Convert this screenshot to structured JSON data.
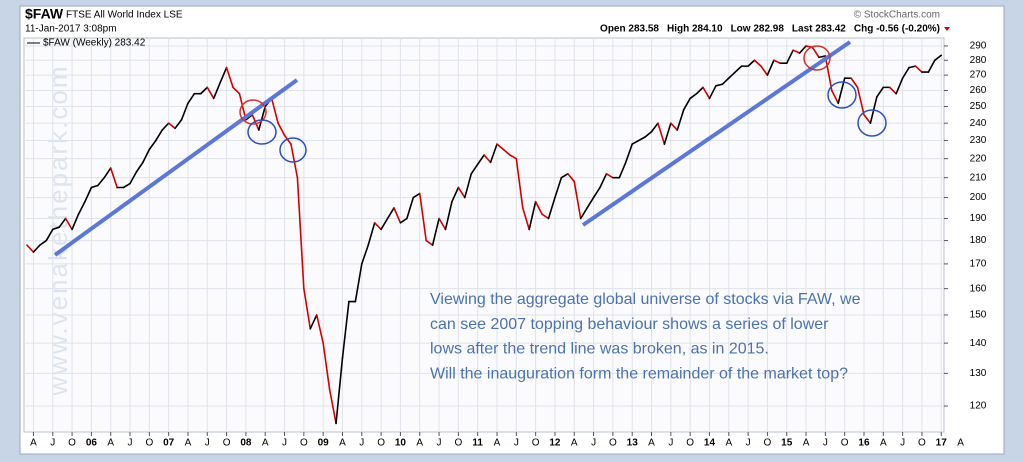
{
  "chart_data": {
    "type": "line",
    "symbol": "$FAW",
    "title": "FTSE All World Index LSE",
    "date": "11-Jan-2017 3:08pm",
    "source": "© StockCharts.com",
    "quote": [
      "Open 283.58",
      "High 284.10",
      "Low 282.98",
      "Last 283.42",
      "Chg -0.56 (-0.20%)"
    ],
    "watermark": "www.venakethepark.com",
    "annotation": [
      "Viewing the aggregate global universe of stocks via FAW, we",
      "can see 2007 topping behaviour shows a series of lower",
      "lows after the trend line was broken, as in 2015.",
      "Will the inauguration form the remainder of the market top?"
    ],
    "series": [
      {
        "name": "$FAW (Weekly) 283.42",
        "color": "#000000",
        "down_color": "#d40000",
        "values": [
          178,
          175,
          178,
          180,
          185,
          186,
          190,
          185,
          192,
          198,
          205,
          206,
          210,
          215,
          205,
          205,
          207,
          213,
          218,
          225,
          230,
          236,
          240,
          237,
          242,
          252,
          258,
          258,
          262,
          255,
          265,
          275,
          262,
          258,
          242,
          245,
          236,
          250,
          255,
          240,
          233,
          228,
          210,
          160,
          145,
          150,
          140,
          125,
          115,
          135,
          155,
          155,
          170,
          178,
          188,
          185,
          190,
          195,
          188,
          190,
          200,
          202,
          180,
          178,
          190,
          185,
          198,
          205,
          200,
          212,
          217,
          222,
          218,
          228,
          225,
          222,
          220,
          195,
          185,
          198,
          192,
          190,
          200,
          210,
          212,
          208,
          190,
          195,
          200,
          205,
          212,
          210,
          210,
          218,
          228,
          230,
          232,
          235,
          240,
          228,
          240,
          236,
          248,
          255,
          258,
          262,
          255,
          263,
          264,
          268,
          272,
          276,
          276,
          280,
          276,
          270,
          280,
          278,
          278,
          287,
          285,
          290,
          289,
          282,
          283,
          260,
          252,
          268,
          268,
          262,
          245,
          240,
          256,
          262,
          262,
          258,
          268,
          275,
          276,
          272,
          272,
          280,
          283.42
        ]
      }
    ],
    "log_scale": true,
    "grid": true,
    "xlim": [
      0,
      146
    ],
    "xticks": [
      {
        "value": 1,
        "label": "A"
      },
      {
        "value": 4,
        "label": "J"
      },
      {
        "value": 7,
        "label": "O"
      },
      {
        "value": 10,
        "label": "06"
      },
      {
        "value": 13,
        "label": "A"
      },
      {
        "value": 16,
        "label": "J"
      },
      {
        "value": 19,
        "label": "O"
      },
      {
        "value": 22,
        "label": "07"
      },
      {
        "value": 25,
        "label": "A"
      },
      {
        "value": 28,
        "label": "J"
      },
      {
        "value": 31,
        "label": "O"
      },
      {
        "value": 34,
        "label": "08"
      },
      {
        "value": 37,
        "label": "A"
      },
      {
        "value": 40,
        "label": "J"
      },
      {
        "value": 43,
        "label": "O"
      },
      {
        "value": 46,
        "label": "09"
      },
      {
        "value": 49,
        "label": "A"
      },
      {
        "value": 52,
        "label": "J"
      },
      {
        "value": 55,
        "label": "O"
      },
      {
        "value": 58,
        "label": "10"
      },
      {
        "value": 61,
        "label": "A"
      },
      {
        "value": 64,
        "label": "J"
      },
      {
        "value": 67,
        "label": "O"
      },
      {
        "value": 70,
        "label": "11"
      },
      {
        "value": 73,
        "label": "A"
      },
      {
        "value": 76,
        "label": "J"
      },
      {
        "value": 79,
        "label": "O"
      },
      {
        "value": 82,
        "label": "12"
      },
      {
        "value": 85,
        "label": "A"
      },
      {
        "value": 88,
        "label": "J"
      },
      {
        "value": 91,
        "label": "O"
      },
      {
        "value": 94,
        "label": "13"
      },
      {
        "value": 97,
        "label": "A"
      },
      {
        "value": 100,
        "label": "J"
      },
      {
        "value": 103,
        "label": "O"
      },
      {
        "value": 106,
        "label": "14"
      },
      {
        "value": 109,
        "label": "A"
      },
      {
        "value": 112,
        "label": "J"
      },
      {
        "value": 115,
        "label": "O"
      },
      {
        "value": 118,
        "label": "15"
      },
      {
        "value": 121,
        "label": "A"
      },
      {
        "value": 124,
        "label": "J"
      },
      {
        "value": 127,
        "label": "O"
      },
      {
        "value": 130,
        "label": "16"
      },
      {
        "value": 133,
        "label": "A"
      },
      {
        "value": 136,
        "label": "J"
      },
      {
        "value": 139,
        "label": "O"
      },
      {
        "value": 142,
        "label": "17"
      },
      {
        "value": 145,
        "label": "A"
      }
    ],
    "ylim": [
      112.6,
      295.7
    ],
    "yticks": [
      120,
      130,
      140,
      150,
      160,
      170,
      180,
      190,
      200,
      210,
      220,
      230,
      240,
      250,
      260,
      270,
      280,
      290
    ]
  }
}
